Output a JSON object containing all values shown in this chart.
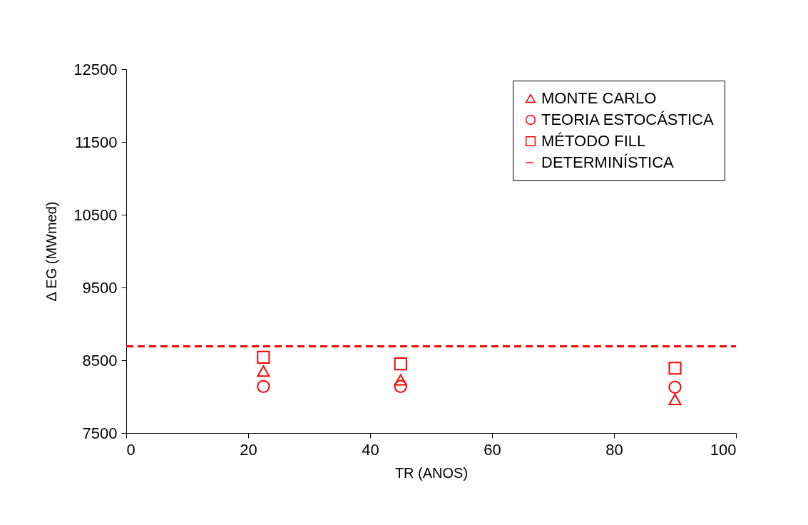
{
  "chart_data": {
    "type": "scatter",
    "xlabel": "TR (ANOS)",
    "ylabel": "Δ EG (MWmed)",
    "xlim": [
      0,
      100
    ],
    "xticks": [
      0,
      20,
      40,
      60,
      80,
      100
    ],
    "ylim": [
      7500,
      12500
    ],
    "yticks": [
      7500,
      8500,
      9500,
      10500,
      11500,
      12500
    ],
    "grid": false,
    "legend": "top right",
    "series": [
      {
        "name": "MONTE CARLO",
        "marker": "triangle",
        "color": "#ff0000",
        "x": [
          22.5,
          45,
          90
        ],
        "values": [
          8350,
          8230,
          7960
        ]
      },
      {
        "name": "TEORIA ESTOCÁSTICA",
        "marker": "circle",
        "color": "#ff0000",
        "x": [
          22.5,
          45,
          90
        ],
        "values": [
          8140,
          8140,
          8130
        ]
      },
      {
        "name": "MÉTODO FILL",
        "marker": "square",
        "color": "#ff0000",
        "x": [
          22.5,
          45,
          90
        ],
        "values": [
          8540,
          8450,
          8390
        ]
      },
      {
        "name": "DETERMINÍSTICA",
        "type": "line",
        "line_style": "dashed",
        "color": "#ff0000",
        "x": [
          0,
          100
        ],
        "values": [
          8690,
          8690
        ]
      }
    ]
  }
}
